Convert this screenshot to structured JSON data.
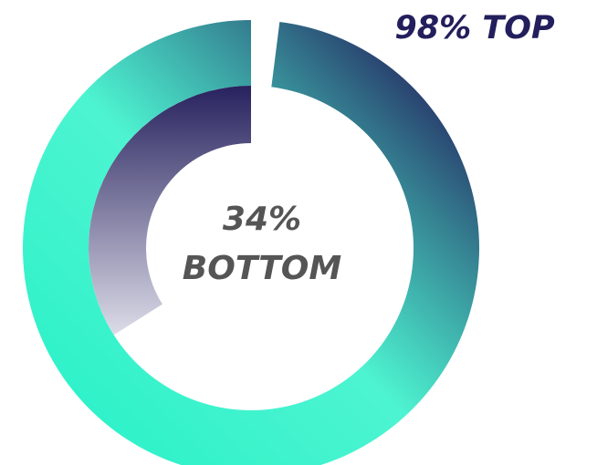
{
  "chart_data": {
    "type": "radial_bar",
    "series": [
      {
        "name": "TOP",
        "value": 98,
        "value_label": "98%",
        "colors": [
          "#2ef2c9",
          "#221c5a"
        ]
      },
      {
        "name": "BOTTOM",
        "value": 34,
        "value_label": "34%",
        "colors": [
          "#dcdce8",
          "#27225e"
        ]
      }
    ],
    "max": 100
  }
}
